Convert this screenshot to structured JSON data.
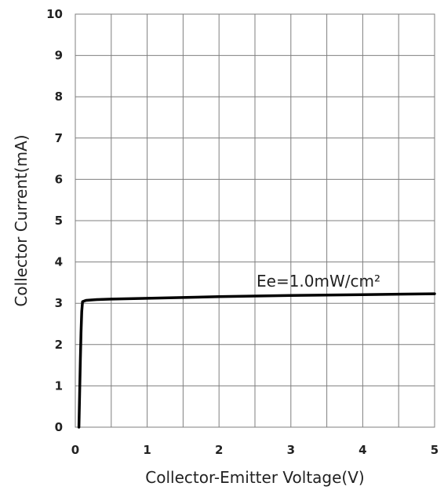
{
  "chart_data": {
    "type": "line",
    "title": "",
    "xlabel": "Collector-Emitter Voltage(V)",
    "ylabel": "Collector Current(mA)",
    "xlim": [
      0,
      5
    ],
    "ylim": [
      0,
      10
    ],
    "x_ticks": [
      "0",
      "1",
      "2",
      "3",
      "4",
      "5"
    ],
    "y_ticks": [
      "0",
      "1",
      "2",
      "3",
      "4",
      "5",
      "6",
      "7",
      "8",
      "9",
      "10"
    ],
    "x_minor_step": 0.5,
    "grid": true,
    "legend": "none",
    "series": [
      {
        "name": "",
        "color": "#000000",
        "x": [
          0.05,
          0.06,
          0.07,
          0.08,
          0.09,
          0.1,
          0.15,
          0.3,
          0.5,
          1.0,
          2.0,
          3.0,
          4.0,
          5.0
        ],
        "y": [
          0.0,
          0.8,
          1.6,
          2.3,
          2.8,
          3.04,
          3.07,
          3.09,
          3.1,
          3.12,
          3.16,
          3.19,
          3.21,
          3.23
        ]
      }
    ],
    "annotations": [
      {
        "text": "Ee=1.0mW/cm²",
        "x": 2.5,
        "y": 3.25
      }
    ]
  }
}
